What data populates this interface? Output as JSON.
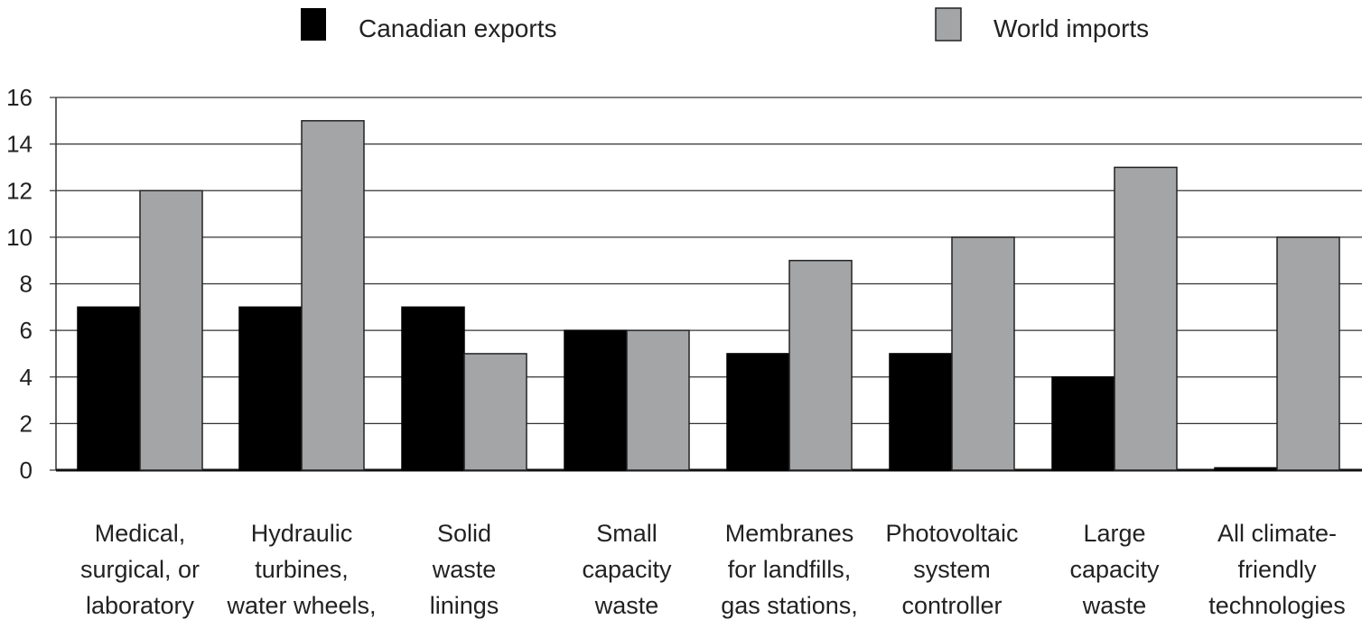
{
  "chart_data": {
    "type": "bar",
    "categories": [
      [
        "Medical,",
        "surgical, or",
        "laboratory"
      ],
      [
        "Hydraulic",
        "turbines,",
        "water wheels,"
      ],
      [
        "Solid",
        "waste",
        "linings"
      ],
      [
        "Small",
        "capacity",
        "waste"
      ],
      [
        "Membranes",
        "for landfills,",
        "gas stations,"
      ],
      [
        "Photovoltaic",
        "system",
        "controller"
      ],
      [
        "Large",
        "capacity",
        "waste"
      ],
      [
        "All climate-",
        "friendly",
        "technologies"
      ]
    ],
    "series": [
      {
        "name": "Canadian exports",
        "values": [
          7,
          7,
          7,
          6,
          5,
          5,
          4,
          0.1
        ],
        "color": "#000000"
      },
      {
        "name": "World imports",
        "values": [
          12,
          15,
          5,
          6,
          9,
          10,
          13,
          10
        ],
        "color": "#a3a5a7"
      }
    ],
    "yticks": [
      "0",
      "2",
      "4",
      "6",
      "8",
      "10",
      "12",
      "14",
      "16"
    ],
    "ylim": [
      0,
      16
    ],
    "grid": true,
    "legend_position": "top"
  }
}
